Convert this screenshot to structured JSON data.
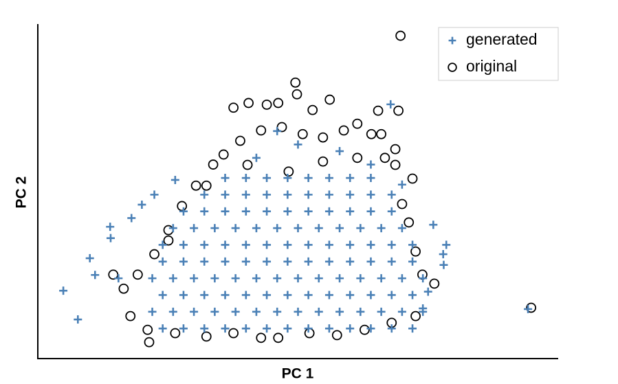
{
  "chart_data": {
    "type": "scatter",
    "x_label": "PC 1",
    "y_label": "PC 2",
    "xlim": [
      0,
      100
    ],
    "ylim": [
      0,
      100
    ],
    "legend": "top-right",
    "series": [
      {
        "name": "original",
        "color": "#000000",
        "marker": "circle",
        "x": [
          69.7,
          94.8,
          37.6,
          40.5,
          44,
          46.2,
          49.5,
          49.8,
          52.8,
          56.1,
          61.4,
          65.4,
          69.3,
          66,
          68.7,
          72,
          35.7,
          38.9,
          42.9,
          46.9,
          50.9,
          54.8,
          58.8,
          64.1,
          66.7,
          33.7,
          30.4,
          27.7,
          25.1,
          22.4,
          19.2,
          14.5,
          16.5,
          17.8,
          21.1,
          21.4,
          26.4,
          32.4,
          37.6,
          42.9,
          46.2,
          52.2,
          57.5,
          62.8,
          68,
          72.6,
          76.2,
          73.9,
          72.6,
          71.3,
          70,
          68.7,
          48.2,
          54.8,
          61.4,
          40.3,
          32.4,
          25.1
        ],
        "values": [
          96.5,
          15.2,
          75,
          76.4,
          75.9,
          76.4,
          82.5,
          79,
          74.3,
          77.4,
          70.2,
          74.1,
          74.1,
          67.1,
          62.6,
          53.8,
          61,
          65.1,
          68.2,
          69.2,
          67.1,
          66.1,
          68.2,
          67.1,
          60,
          58,
          51.7,
          45.6,
          38.4,
          31.2,
          25.1,
          25.1,
          20.9,
          12.7,
          8.6,
          4.9,
          7.6,
          6.6,
          7.6,
          6.2,
          6.2,
          7.6,
          7,
          8.6,
          10.7,
          12.7,
          22.4,
          25.1,
          32,
          40.7,
          46.2,
          57.9,
          55.9,
          58.9,
          60,
          57.9,
          51.7,
          35.3
        ]
      },
      {
        "name": "generated",
        "color": "#4a80b6",
        "marker": "plus",
        "x": [
          4.9,
          7.7,
          13.9,
          22.4,
          26.4,
          77.9,
          94.2,
          67.8,
          10,
          14,
          18,
          20,
          15.5,
          11,
          78,
          78.5,
          76,
          75,
          74,
          58,
          50,
          46,
          42,
          64,
          70,
          24,
          28,
          32,
          36,
          40,
          44,
          48,
          52,
          56,
          60,
          64,
          68,
          72,
          22,
          26,
          30,
          34,
          38,
          42,
          46,
          50,
          54,
          58,
          62,
          66,
          70,
          74,
          24,
          28,
          32,
          36,
          40,
          44,
          48,
          52,
          56,
          60,
          64,
          68,
          72,
          22,
          26,
          30,
          34,
          38,
          42,
          46,
          50,
          54,
          58,
          62,
          66,
          70,
          74,
          24,
          28,
          32,
          36,
          40,
          44,
          48,
          52,
          56,
          60,
          64,
          68,
          72,
          24,
          28,
          32,
          36,
          40,
          44,
          48,
          52,
          56,
          60,
          64,
          68,
          72,
          26,
          30,
          34,
          38,
          42,
          46,
          50,
          54,
          58,
          62,
          66,
          70,
          28,
          32,
          36,
          40,
          44,
          48,
          52,
          56,
          60,
          64,
          68,
          32,
          36,
          40,
          44,
          48,
          52,
          56,
          60,
          64,
          68,
          36,
          40,
          44,
          48,
          52,
          56,
          60,
          64
        ],
        "values": [
          20.3,
          11.7,
          39.4,
          49,
          53.4,
          31.2,
          14.8,
          76,
          30,
          36,
          42,
          46,
          24,
          25,
          28,
          34,
          40,
          20,
          15,
          62,
          64,
          68,
          60,
          58,
          52,
          9,
          9,
          9,
          9,
          9,
          9,
          9,
          9,
          9,
          9,
          9,
          9,
          9,
          14,
          14,
          14,
          14,
          14,
          14,
          14,
          14,
          14,
          14,
          14,
          14,
          14,
          14,
          19,
          19,
          19,
          19,
          19,
          19,
          19,
          19,
          19,
          19,
          19,
          19,
          19,
          24,
          24,
          24,
          24,
          24,
          24,
          24,
          24,
          24,
          24,
          24,
          24,
          24,
          24,
          29,
          29,
          29,
          29,
          29,
          29,
          29,
          29,
          29,
          29,
          29,
          29,
          29,
          34,
          34,
          34,
          34,
          34,
          34,
          34,
          34,
          34,
          34,
          34,
          34,
          34,
          39,
          39,
          39,
          39,
          39,
          39,
          39,
          39,
          39,
          39,
          39,
          39,
          44,
          44,
          44,
          44,
          44,
          44,
          44,
          44,
          44,
          44,
          44,
          49,
          49,
          49,
          49,
          49,
          49,
          49,
          49,
          49,
          49,
          54,
          54,
          54,
          54,
          54,
          54,
          54,
          54
        ]
      }
    ]
  }
}
